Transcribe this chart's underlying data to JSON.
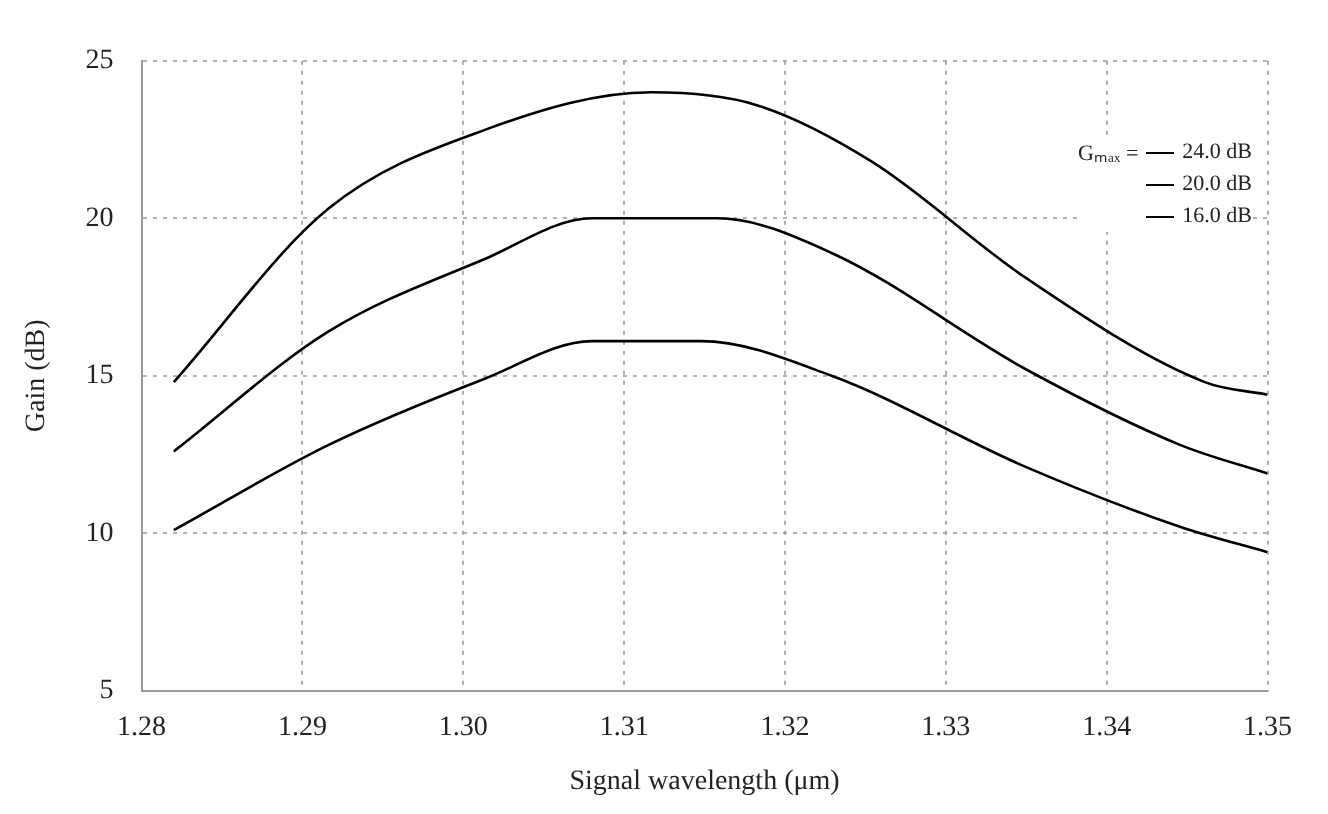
{
  "chart_data": {
    "type": "line",
    "xlabel": "Signal wavelength (μm)",
    "ylabel": "Gain (dB)",
    "legend_title": "Gₘₐₓ =",
    "legend": "top right",
    "grid": true,
    "line_style": "solid",
    "marker": "none",
    "xlim": [
      1.28,
      1.35
    ],
    "xticks": [
      1.28,
      1.29,
      {
        "value": 1.3,
        "label": "1.30"
      },
      1.31,
      1.32,
      1.33,
      1.34,
      1.35
    ],
    "ylim": [
      5,
      25
    ],
    "yticks": [
      5,
      10,
      15,
      20,
      25
    ],
    "series": [
      {
        "name": "24.0 dB",
        "color": "#000000",
        "x": [
          1.282,
          1.2916,
          1.3013,
          1.3117,
          1.3182,
          1.3254,
          1.335,
          1.3461,
          1.35
        ],
        "values": [
          14.8,
          20.3,
          22.8,
          24.0,
          23.6,
          21.8,
          18.1,
          14.8,
          14.4
        ]
      },
      {
        "name": "20.0 dB",
        "color": "#000000",
        "x": [
          1.282,
          1.2916,
          1.3013,
          1.308,
          1.3158,
          1.3229,
          1.335,
          1.3446,
          1.35
        ],
        "values": [
          12.6,
          16.4,
          18.7,
          20.0,
          20.0,
          18.9,
          15.2,
          12.8,
          11.9
        ]
      },
      {
        "name": "16.0 dB",
        "color": "#000000",
        "x": [
          1.282,
          1.2916,
          1.3013,
          1.308,
          1.3148,
          1.3229,
          1.335,
          1.3446,
          1.35
        ],
        "values": [
          10.1,
          12.8,
          14.9,
          16.1,
          16.1,
          15.0,
          12.1,
          10.2,
          9.4
        ]
      }
    ]
  }
}
